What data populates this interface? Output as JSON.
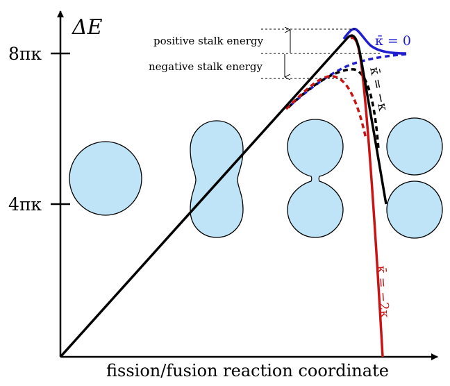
{
  "y_axis": {
    "label": "ΔE",
    "ticks": [
      "8πκ",
      "4πκ"
    ]
  },
  "x_axis": {
    "label": "fission/fusion reaction coordinate"
  },
  "annotations": {
    "positive_stalk": "positive stalk energy",
    "negative_stalk": "negative stalk energy"
  },
  "curve_labels": {
    "kappa_0": "κ̄ = 0",
    "kappa_neg1": "κ̄ = −κ",
    "kappa_neg2": "κ̄ = −2κ"
  },
  "colors": {
    "kappa_0": "#1f1fd0",
    "kappa_neg1": "#000000",
    "kappa_neg2": "#c81414",
    "vesicle_fill": "#bfe4f7"
  },
  "icons": [
    "sphere-shape",
    "dumbbell-shape",
    "hourglass-shape",
    "two-spheres-shape"
  ]
}
